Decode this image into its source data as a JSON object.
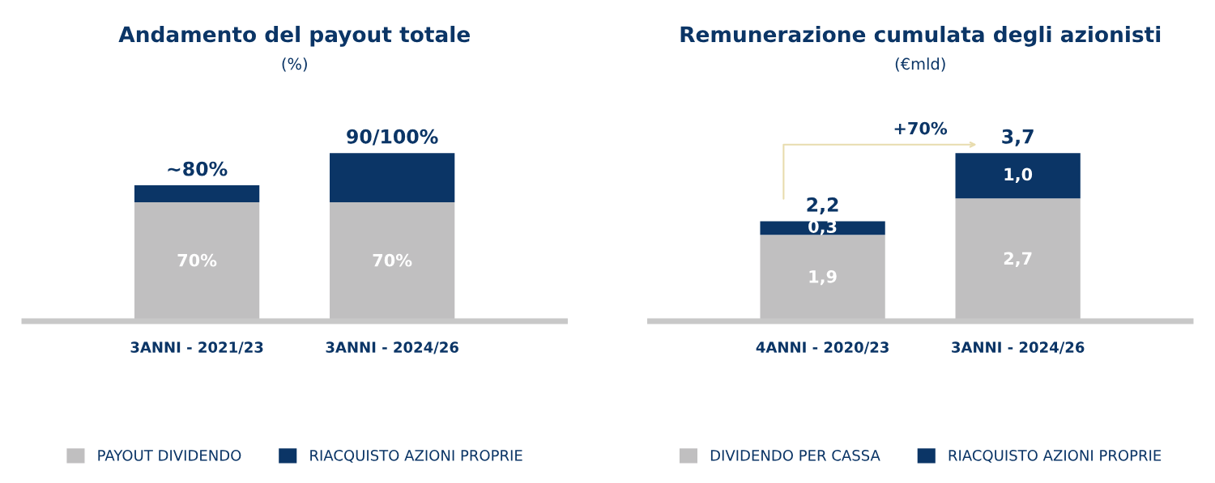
{
  "chart_data": [
    {
      "type": "bar",
      "title": "Andamento del payout totale",
      "subtitle": "(%)",
      "categories": [
        "3ANNI - 2021/23",
        "3ANNI - 2024/26"
      ],
      "stacked": true,
      "tick_labels": "x",
      "grid": false,
      "legend": "bottom",
      "series": [
        {
          "name": "PAYOUT DIVIDENDO",
          "color": "#c0bfc0",
          "values": [
            70,
            70
          ],
          "value_labels": [
            "70%",
            "70%"
          ]
        },
        {
          "name": "RIACQUISTO AZIONI PROPRIE",
          "color": "#0b3566",
          "values": [
            10,
            29
          ],
          "value_labels": [
            null,
            null
          ]
        }
      ],
      "totals": [
        "~80%",
        "90/100%"
      ]
    },
    {
      "type": "bar",
      "title": "Remunerazione cumulata degli azionisti",
      "subtitle": "(€mld)",
      "categories": [
        "4ANNI - 2020/23",
        "3ANNI - 2024/26"
      ],
      "stacked": true,
      "tick_labels": "x",
      "grid": false,
      "legend": "bottom",
      "series": [
        {
          "name": "DIVIDENDO PER CASSA",
          "color": "#c0bfc0",
          "values": [
            1.9,
            2.7
          ],
          "value_labels": [
            "1,9",
            "2,7"
          ]
        },
        {
          "name": "RIACQUISTO AZIONI PROPRIE",
          "color": "#0b3566",
          "values": [
            0.3,
            1.0
          ],
          "value_labels": [
            "0,3",
            "1,0"
          ]
        }
      ],
      "totals": [
        "2,2",
        "3,7"
      ],
      "annotations": [
        "+70%"
      ]
    }
  ]
}
